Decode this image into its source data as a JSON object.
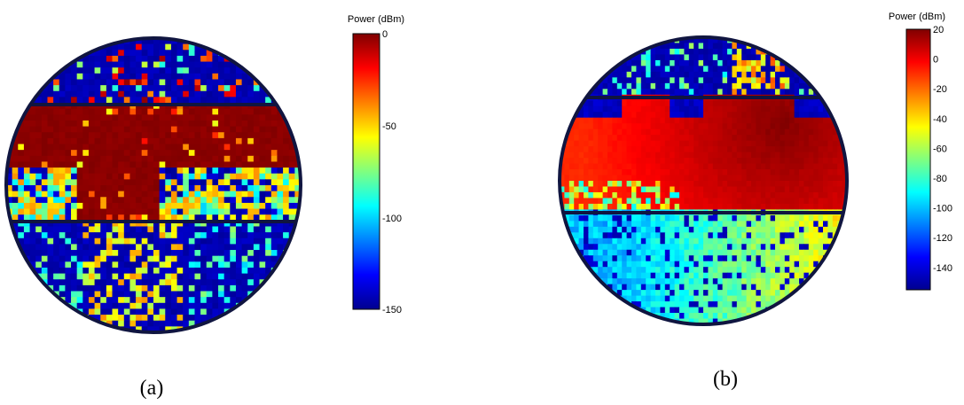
{
  "chart_data": [
    {
      "type": "heatmap",
      "caption": "(a)",
      "colorbar": {
        "title": "Power (dBm)",
        "range": [
          -150,
          0
        ],
        "ticks": [
          0,
          -50,
          -100,
          -150
        ],
        "tick_labels": [
          "0",
          "-50",
          "-100",
          "-150"
        ]
      },
      "grid": {
        "cols": 50,
        "rows": 50
      },
      "regions": [
        {
          "band": "top",
          "dominant_dbm": -145,
          "description_value": "mostly low power with scattered hot cells"
        },
        {
          "band": "middle",
          "dominant_dbm": 0,
          "value_range_dbm": [
            -50,
            0
          ]
        },
        {
          "band": "bottom",
          "dominant_dbm": -145,
          "value_range_dbm": [
            -150,
            -50
          ]
        }
      ]
    },
    {
      "type": "heatmap",
      "caption": "(b)",
      "colorbar": {
        "title": "Power (dBm)",
        "range": [
          -155,
          20
        ],
        "ticks": [
          20,
          0,
          -20,
          -40,
          -60,
          -80,
          -100,
          -120,
          -140
        ],
        "tick_labels": [
          "20",
          "0",
          "-20",
          "-40",
          "-60",
          "-80",
          "-100",
          "-120",
          "-140"
        ]
      },
      "grid": {
        "cols": 60,
        "rows": 50
      },
      "regions": [
        {
          "band": "top",
          "dominant_dbm": -150,
          "value_range_dbm": [
            -155,
            -40
          ]
        },
        {
          "band": "middle",
          "dominant_dbm": 5,
          "value_range_dbm": [
            -20,
            20
          ]
        },
        {
          "band": "bottom",
          "dominant_dbm": -100,
          "value_range_dbm": [
            -150,
            -50
          ]
        }
      ]
    }
  ],
  "colors": {
    "jet": [
      "#00008f",
      "#0000ff",
      "#0080ff",
      "#00ffff",
      "#80ff80",
      "#ffff00",
      "#ff8000",
      "#ff0000",
      "#800000"
    ],
    "outline": "#101540"
  }
}
